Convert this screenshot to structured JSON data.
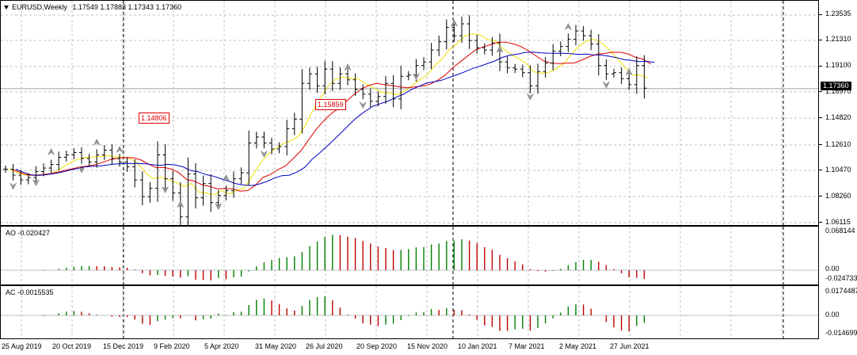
{
  "header": {
    "symbol": "EURUSD,Weekly",
    "open": "1.17549",
    "high": "1.17883",
    "low": "1.17343",
    "close": "1.17360"
  },
  "price_axis": {
    "labels": [
      "1.23535",
      "1.21310",
      "1.19100",
      "1.16970",
      "1.14820",
      "1.12610",
      "1.10470",
      "1.08260",
      "1.06115"
    ],
    "current_price": "1.17360"
  },
  "price_labels": [
    "1.14806",
    "1.15859"
  ],
  "ao": {
    "title": "AO -0.020427",
    "axis_labels": [
      "0.068144",
      "0.00",
      "-0.024733"
    ]
  },
  "ac": {
    "title": "AC -0.0015535",
    "axis_labels": [
      "0.0174487",
      "0.00",
      "-0.014699"
    ]
  },
  "time_axis": {
    "labels": [
      "25 Aug 2019",
      "20 Oct 2019",
      "15 Dec 2019",
      "9 Feb 2020",
      "5 Apr 2020",
      "31 May 2020",
      "26 Jul 2020",
      "20 Sep 2020",
      "15 Nov 2020",
      "10 Jan 2021",
      "7 Mar 2021",
      "2 May 2021",
      "27 Jun 2021"
    ]
  },
  "colors": {
    "bull_bar": "#008000",
    "bear_bar": "#c00000",
    "ma_fast": "#f0e000",
    "ma_mid": "#e00000",
    "ma_slow": "#0000c0",
    "grid": "#c0c0c0"
  },
  "chart_data": {
    "type": "ohlc",
    "series": [
      {
        "name": "EURUSD,Weekly",
        "close_values": [
          1.106,
          1.101,
          1.097,
          1.099,
          1.104,
          1.107,
          1.11,
          1.116,
          1.118,
          1.12,
          1.115,
          1.112,
          1.118,
          1.122,
          1.115,
          1.112,
          1.108,
          1.097,
          1.083,
          1.09,
          1.118,
          1.098,
          1.086,
          1.066,
          1.102,
          1.082,
          1.094,
          1.078,
          1.084,
          1.088,
          1.098,
          1.103,
          1.128,
          1.133,
          1.128,
          1.123,
          1.125,
          1.14,
          1.148,
          1.178,
          1.186,
          1.176,
          1.19,
          1.178,
          1.186,
          1.181,
          1.173,
          1.169,
          1.163,
          1.167,
          1.178,
          1.165,
          1.184,
          1.185,
          1.193,
          1.196,
          1.206,
          1.213,
          1.225,
          1.218,
          1.228,
          1.214,
          1.208,
          1.206,
          1.212,
          1.196,
          1.191,
          1.19,
          1.187,
          1.176,
          1.188,
          1.195,
          1.205,
          1.209,
          1.215,
          1.222,
          1.218,
          1.211,
          1.193,
          1.186,
          1.187,
          1.182,
          1.177,
          1.193,
          1.174
        ]
      }
    ]
  }
}
